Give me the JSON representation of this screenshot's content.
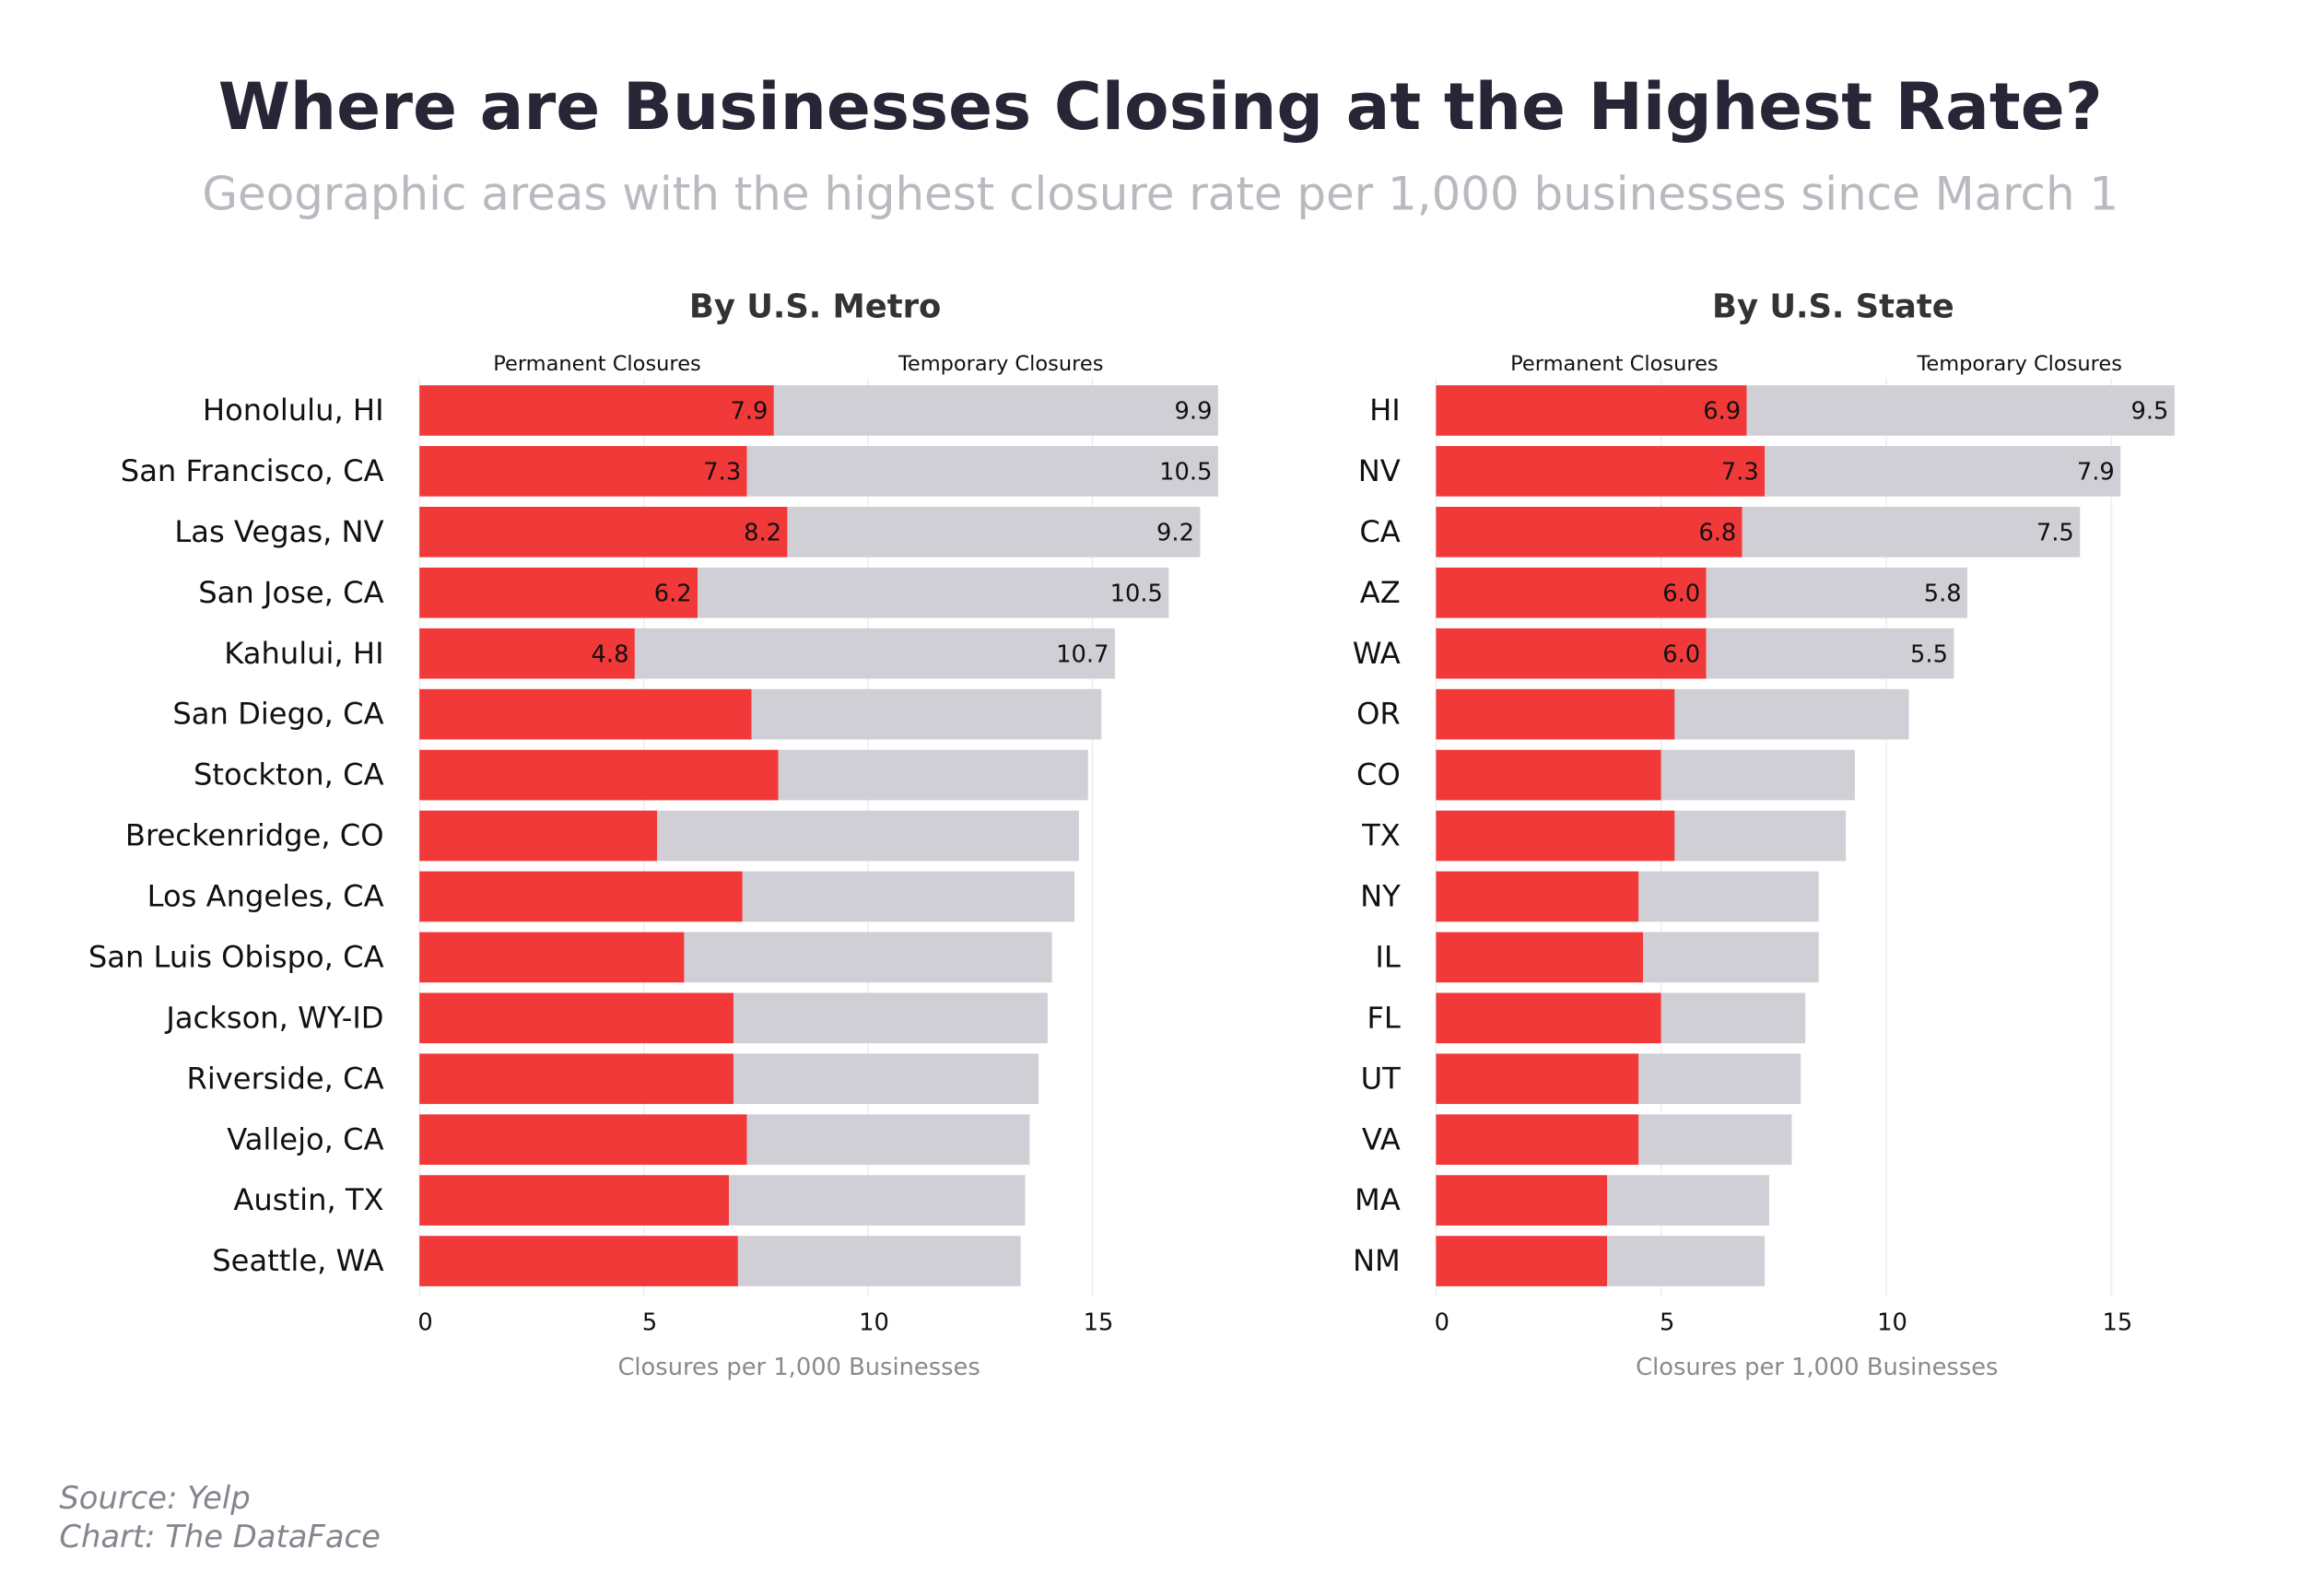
{
  "title": "Where are Businesses Closing at the Highest Rate?",
  "subtitle": "Geographic areas with the highest closure rate per 1,000 businesses since March 1",
  "source": "Source: Yelp",
  "credit": "Chart: The DataFace",
  "chart_data": [
    {
      "type": "stacked-hbar",
      "title": "By U.S. Metro",
      "x_label": "Closures per 1,000 Businesses",
      "categories": [
        "Honolulu, HI",
        "San Francisco, CA",
        "Las Vegas, NV",
        "San Jose, CA",
        "Kahului, HI",
        "San Diego, CA",
        "Stockton, CA",
        "Breckenridge, CO",
        "Los Angeles, CA",
        "San Luis Obispo, CA",
        "Jackson, WY-ID",
        "Riverside, CA",
        "Vallejo, CA",
        "Austin, TX",
        "Seattle, WA"
      ],
      "series": [
        {
          "name": "Permanent Closures",
          "color": "#f2393a",
          "values": [
            7.9,
            7.3,
            8.2,
            6.2,
            4.8,
            7.4,
            8.0,
            5.3,
            7.2,
            5.9,
            7.0,
            7.0,
            7.3,
            6.9,
            7.1
          ],
          "value_labels": [
            "7.9",
            "7.3",
            "8.2",
            "6.2",
            "4.8",
            null,
            null,
            null,
            null,
            null,
            null,
            null,
            null,
            null,
            null
          ]
        },
        {
          "name": "Temporary Closures",
          "color": "#d0cfd6",
          "values": [
            9.9,
            10.5,
            9.2,
            10.5,
            10.7,
            7.8,
            6.9,
            9.4,
            7.4,
            8.2,
            7.0,
            6.8,
            6.3,
            6.6,
            6.3
          ],
          "value_labels": [
            "9.9",
            "10.5",
            "9.2",
            "10.5",
            "10.7",
            null,
            null,
            null,
            null,
            null,
            null,
            null,
            null,
            null,
            null
          ]
        }
      ],
      "xlim": [
        0,
        18
      ],
      "xticks": [
        0,
        5,
        10,
        15
      ],
      "grid": true
    },
    {
      "type": "stacked-hbar",
      "title": "By U.S. State",
      "x_label": "Closures per 1,000 Businesses",
      "categories": [
        "HI",
        "NV",
        "CA",
        "AZ",
        "WA",
        "OR",
        "CO",
        "TX",
        "NY",
        "IL",
        "FL",
        "UT",
        "VA",
        "MA",
        "NM"
      ],
      "series": [
        {
          "name": "Permanent Closures",
          "color": "#f2393a",
          "values": [
            6.9,
            7.3,
            6.8,
            6.0,
            6.0,
            5.3,
            5.0,
            5.3,
            4.5,
            4.6,
            5.0,
            4.5,
            4.5,
            3.8,
            3.8
          ],
          "value_labels": [
            "6.9",
            "7.3",
            "6.8",
            "6.0",
            "6.0",
            null,
            null,
            null,
            null,
            null,
            null,
            null,
            null,
            null,
            null
          ]
        },
        {
          "name": "Temporary Closures",
          "color": "#d0cfd6",
          "values": [
            9.5,
            7.9,
            7.5,
            5.8,
            5.5,
            5.2,
            4.3,
            3.8,
            4.0,
            3.9,
            3.2,
            3.6,
            3.4,
            3.6,
            3.5
          ],
          "value_labels": [
            "9.5",
            "7.9",
            "7.5",
            "5.8",
            "5.5",
            null,
            null,
            null,
            null,
            null,
            null,
            null,
            null,
            null,
            null
          ]
        }
      ],
      "xlim": [
        0,
        18
      ],
      "xticks": [
        0,
        5,
        10,
        15
      ],
      "grid": true
    }
  ]
}
